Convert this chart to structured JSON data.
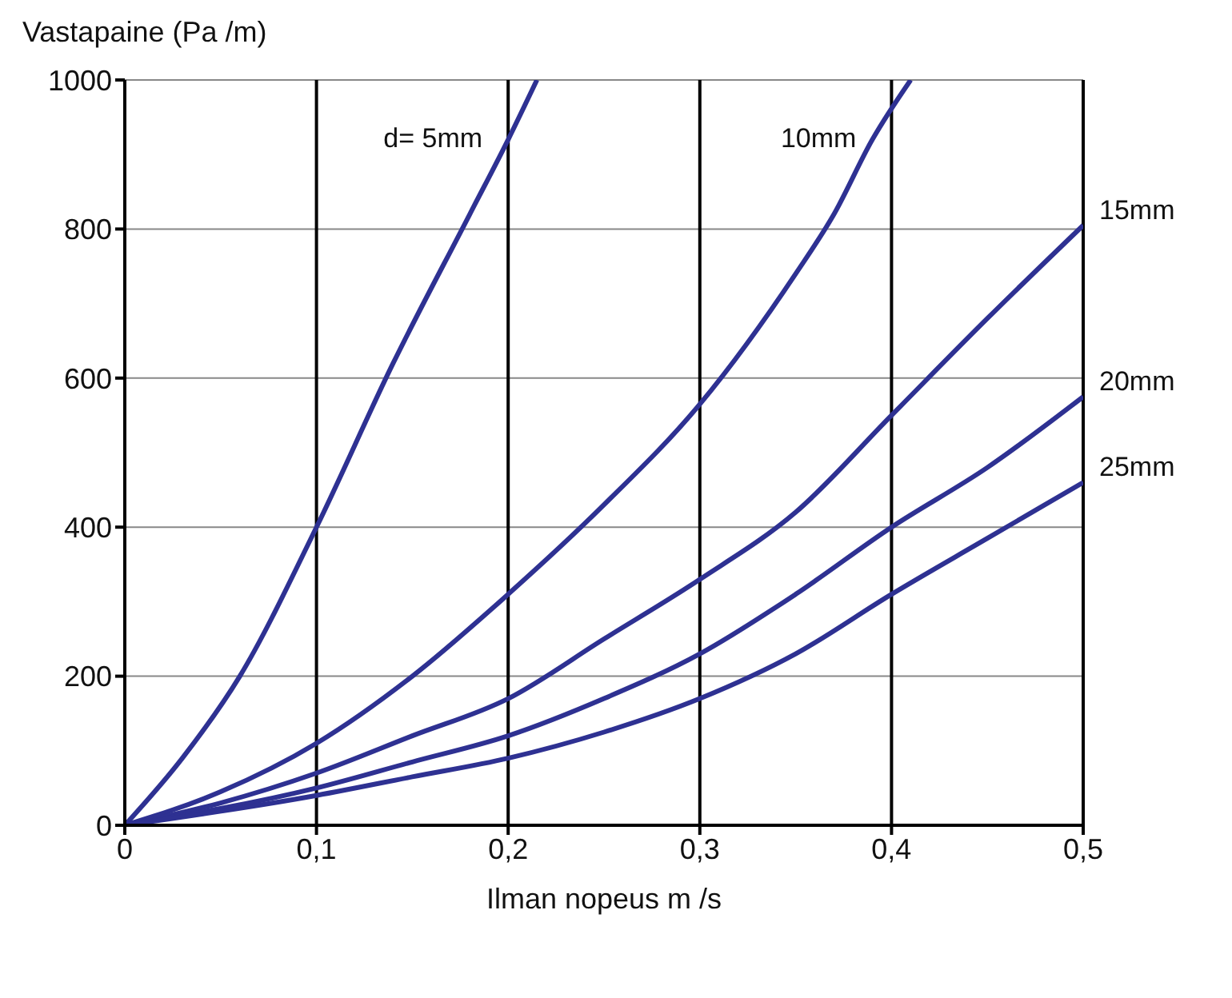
{
  "chart_data": {
    "type": "line",
    "xlabel": "Ilman nopeus m /s",
    "ylabel": "Vastapaine (Pa /m)",
    "xlim": [
      0,
      0.5
    ],
    "ylim": [
      0,
      1000
    ],
    "xticks": [
      0,
      {
        "value": 0.1,
        "label": "0,1"
      },
      {
        "value": 0.2,
        "label": "0,2"
      },
      {
        "value": 0.3,
        "label": "0,3"
      },
      {
        "value": 0.4,
        "label": "0,4"
      },
      {
        "value": 0.5,
        "label": "0,5"
      }
    ],
    "yticks": [
      0,
      200,
      400,
      600,
      800,
      1000
    ],
    "grid": true,
    "legend": false,
    "marker": "none",
    "line_style": "solid",
    "series": [
      {
        "name": "d= 5mm",
        "color": "#2e3192",
        "x": [
          0,
          0.03,
          0.06,
          0.1,
          0.14,
          0.18,
          0.2,
          0.215
        ],
        "values": [
          0,
          90,
          200,
          400,
          620,
          820,
          920,
          1000
        ]
      },
      {
        "name": "10mm",
        "color": "#2e3192",
        "x": [
          0,
          0.05,
          0.1,
          0.15,
          0.2,
          0.25,
          0.3,
          0.35,
          0.37,
          0.39,
          0.41
        ],
        "values": [
          0,
          45,
          110,
          200,
          310,
          430,
          565,
          740,
          820,
          920,
          1000
        ]
      },
      {
        "name": "15mm",
        "color": "#2e3192",
        "x": [
          0,
          0.05,
          0.1,
          0.15,
          0.2,
          0.25,
          0.3,
          0.35,
          0.4,
          0.45,
          0.5
        ],
        "values": [
          0,
          30,
          70,
          120,
          170,
          250,
          330,
          420,
          550,
          680,
          805
        ]
      },
      {
        "name": "20mm",
        "color": "#2e3192",
        "x": [
          0,
          0.1,
          0.15,
          0.2,
          0.25,
          0.3,
          0.35,
          0.4,
          0.45,
          0.5
        ],
        "values": [
          0,
          50,
          85,
          120,
          170,
          230,
          310,
          400,
          480,
          575
        ]
      },
      {
        "name": "25mm",
        "color": "#2e3192",
        "x": [
          0,
          0.1,
          0.15,
          0.2,
          0.25,
          0.3,
          0.35,
          0.4,
          0.45,
          0.5
        ],
        "values": [
          0,
          40,
          65,
          90,
          125,
          170,
          230,
          310,
          385,
          460
        ]
      }
    ]
  }
}
